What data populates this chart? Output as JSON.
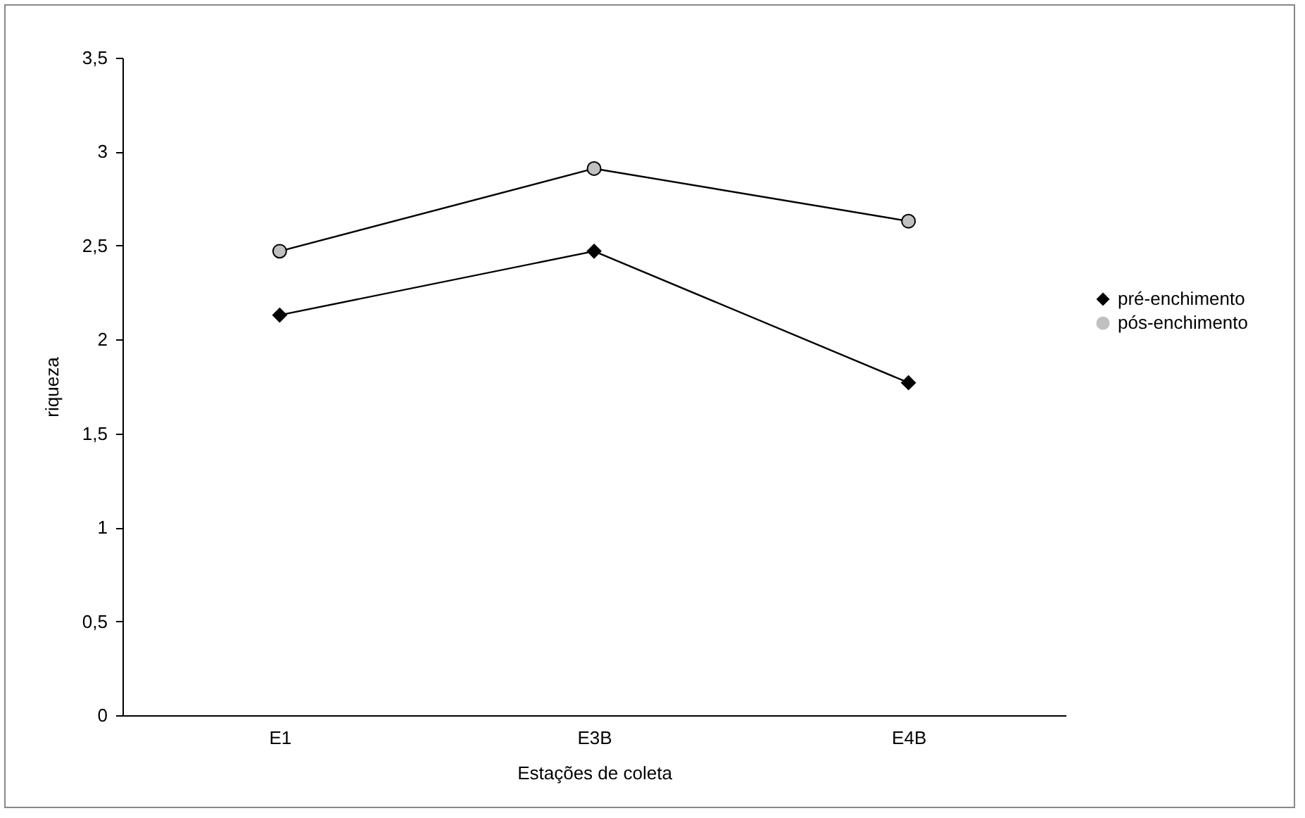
{
  "chart_data": {
    "type": "line",
    "xlabel": "Estações de coleta",
    "ylabel": "riqueza",
    "categories": [
      "E1",
      "E3B",
      "E4B"
    ],
    "series": [
      {
        "name": "pré-enchimento",
        "color": "#000000",
        "marker": "diamond",
        "values": [
          2.13,
          2.47,
          1.77
        ]
      },
      {
        "name": "pós-enchimento",
        "color": "#c0c0c0",
        "marker": "circle",
        "values": [
          2.47,
          2.91,
          2.63
        ]
      }
    ],
    "ylim": [
      0,
      3.5
    ],
    "yticks": [
      0,
      {
        "value": 0.5,
        "label": "0,5"
      },
      1,
      {
        "value": 1.5,
        "label": "1,5"
      },
      2,
      {
        "value": 2.5,
        "label": "2,5"
      },
      3,
      {
        "value": 3.5,
        "label": "3,5"
      }
    ],
    "grid": false,
    "legend": "right",
    "line_style": "solid"
  }
}
